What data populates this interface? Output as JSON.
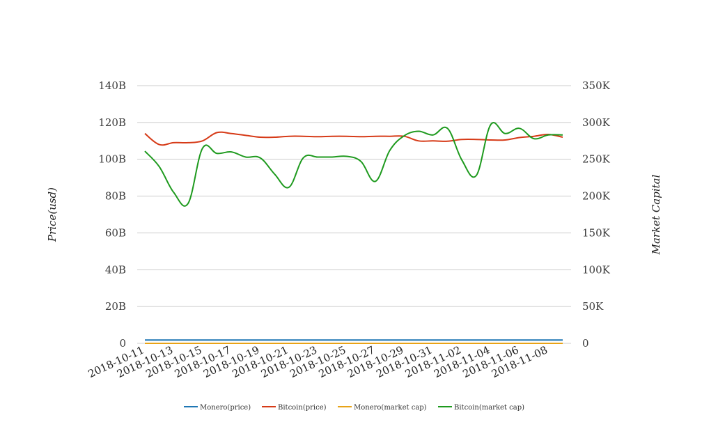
{
  "chart_data": {
    "type": "line",
    "x": [
      "2018-10-11",
      "2018-10-12",
      "2018-10-13",
      "2018-10-14",
      "2018-10-15",
      "2018-10-16",
      "2018-10-17",
      "2018-10-18",
      "2018-10-19",
      "2018-10-20",
      "2018-10-21",
      "2018-10-22",
      "2018-10-23",
      "2018-10-24",
      "2018-10-25",
      "2018-10-26",
      "2018-10-27",
      "2018-10-28",
      "2018-10-29",
      "2018-10-30",
      "2018-10-31",
      "2018-11-01",
      "2018-11-02",
      "2018-11-03",
      "2018-11-04",
      "2018-11-05",
      "2018-11-06",
      "2018-11-07",
      "2018-11-08",
      "2018-11-09"
    ],
    "x_tick_labels": [
      "2018-10-11",
      "2018-10-13",
      "2018-10-15",
      "2018-10-17",
      "2018-10-19",
      "2018-10-21",
      "2018-10-23",
      "2018-10-25",
      "2018-10-27",
      "2018-10-29",
      "2018-10-31",
      "2018-11-02",
      "2018-11-04",
      "2018-11-06",
      "2018-11-08"
    ],
    "y_left": {
      "label": "Price(usd)",
      "min": 0,
      "max": 140000000000,
      "ticks": [
        0,
        20000000000,
        40000000000,
        60000000000,
        80000000000,
        100000000000,
        120000000000,
        140000000000
      ],
      "tick_labels": [
        "0",
        "20B",
        "40B",
        "60B",
        "80B",
        "100B",
        "120B",
        "140B"
      ]
    },
    "y_right": {
      "label": "Market Capital",
      "min": 0,
      "max": 350000,
      "ticks": [
        0,
        50000,
        100000,
        150000,
        200000,
        250000,
        300000,
        350000
      ],
      "tick_labels": [
        "0",
        "50K",
        "100K",
        "150K",
        "200K",
        "250K",
        "300K",
        "350K"
      ]
    },
    "grid": true,
    "legend_position": "bottom",
    "series": [
      {
        "name": "Monero(price)",
        "color": "#1f77b4",
        "axis": "left",
        "values": [
          1800000000.0,
          1800000000.0,
          1800000000.0,
          1800000000.0,
          1800000000.0,
          1800000000.0,
          1800000000.0,
          1800000000.0,
          1800000000.0,
          1800000000.0,
          1800000000.0,
          1800000000.0,
          1800000000.0,
          1800000000.0,
          1800000000.0,
          1800000000.0,
          1800000000.0,
          1800000000.0,
          1800000000.0,
          1800000000.0,
          1800000000.0,
          1800000000.0,
          1800000000.0,
          1800000000.0,
          1800000000.0,
          1800000000.0,
          1800000000.0,
          1800000000.0,
          1800000000.0,
          1800000000.0
        ]
      },
      {
        "name": "Bitcoin(price)",
        "color": "#d63a17",
        "axis": "left",
        "values": [
          114000000000.0,
          108000000000.0,
          109000000000.0,
          109000000000.0,
          110000000000.0,
          114500000000.0,
          114000000000.0,
          113000000000.0,
          112000000000.0,
          112000000000.0,
          112500000000.0,
          112500000000.0,
          112300000000.0,
          112500000000.0,
          112500000000.0,
          112300000000.0,
          112500000000.0,
          112500000000.0,
          112500000000.0,
          110000000000.0,
          110000000000.0,
          109800000000.0,
          110800000000.0,
          110800000000.0,
          110500000000.0,
          110500000000.0,
          111800000000.0,
          112500000000.0,
          113500000000.0,
          112000000000.0
        ]
      },
      {
        "name": "Monero(market cap)",
        "color": "#e8a317",
        "axis": "right",
        "values": [
          0,
          0,
          0,
          0,
          0,
          0,
          0,
          0,
          0,
          0,
          0,
          0,
          0,
          0,
          0,
          0,
          0,
          0,
          0,
          0,
          0,
          0,
          0,
          0,
          0,
          0,
          0,
          0,
          0,
          0
        ]
      },
      {
        "name": "Bitcoin(market cap)",
        "color": "#1e9a1e",
        "axis": "right",
        "values": [
          261000,
          240000,
          205000,
          190000,
          265000,
          258000,
          260000,
          253000,
          252000,
          230000,
          212000,
          252000,
          253000,
          253000,
          254000,
          247000,
          220000,
          262000,
          282000,
          288000,
          283000,
          292000,
          249000,
          228000,
          297000,
          285000,
          292000,
          278000,
          283000,
          283000
        ]
      }
    ]
  }
}
